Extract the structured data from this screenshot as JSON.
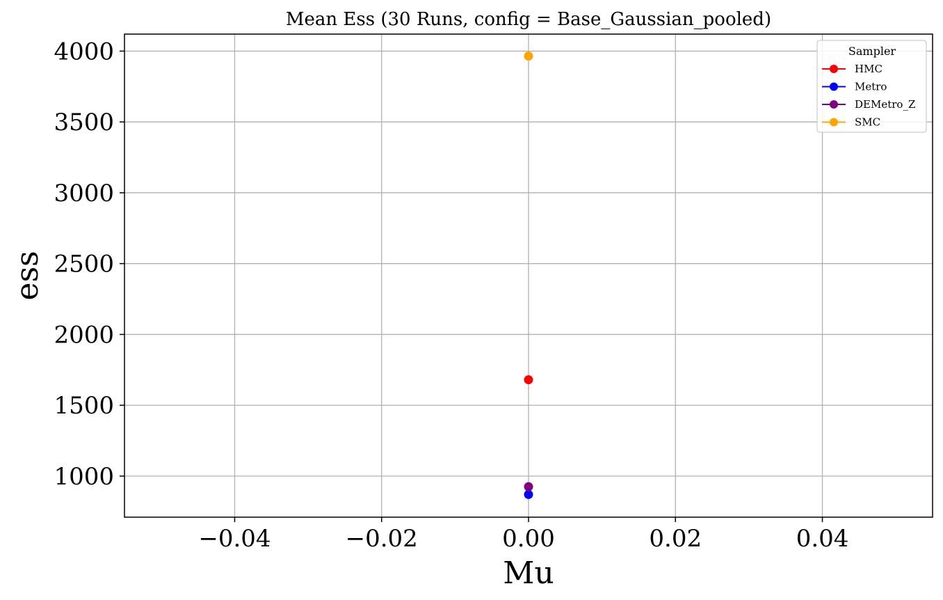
{
  "chart_data": {
    "type": "scatter",
    "title": "Mean Ess (30 Runs, config = Base_Gaussian_pooled)",
    "xlabel": "Mu",
    "ylabel": "ess",
    "xlim": [
      -0.055,
      0.055
    ],
    "ylim": [
      710,
      4120
    ],
    "xticks": [
      -0.04,
      -0.02,
      0.0,
      0.02,
      0.04
    ],
    "xtick_labels": [
      "−0.04",
      "−0.02",
      "0.00",
      "0.02",
      "0.04"
    ],
    "yticks": [
      1000,
      1500,
      2000,
      2500,
      3000,
      3500,
      4000
    ],
    "ytick_labels": [
      "1000",
      "1500",
      "2000",
      "2500",
      "3000",
      "3500",
      "4000"
    ],
    "grid": true,
    "legend": {
      "title": "Sampler",
      "placement": "top-right"
    },
    "series": [
      {
        "name": "HMC",
        "color": "#ff0000",
        "x": [
          0.0
        ],
        "y": [
          1680
        ]
      },
      {
        "name": "Metro",
        "color": "#0000ff",
        "x": [
          0.0
        ],
        "y": [
          870
        ]
      },
      {
        "name": "DEMetro_Z",
        "color": "#800080",
        "x": [
          0.0
        ],
        "y": [
          925
        ]
      },
      {
        "name": "SMC",
        "color": "#ffa500",
        "x": [
          0.0
        ],
        "y": [
          3965
        ]
      }
    ]
  }
}
